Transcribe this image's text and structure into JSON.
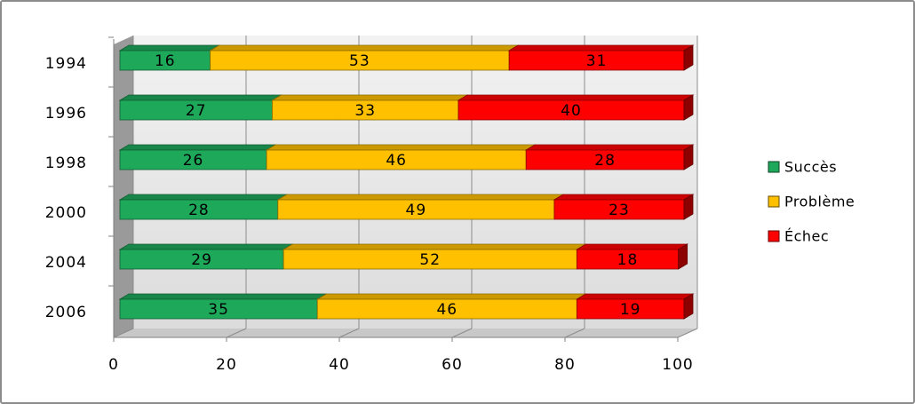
{
  "chart_data": {
    "type": "bar",
    "orientation": "horizontal",
    "stacked": true,
    "categories": [
      "1994",
      "1996",
      "1998",
      "2000",
      "2004",
      "2006"
    ],
    "series": [
      {
        "name": "Succès",
        "color": "#1ea85a",
        "values": [
          16,
          27,
          26,
          28,
          29,
          35
        ]
      },
      {
        "name": "Problème",
        "color": "#ffc000",
        "values": [
          53,
          33,
          46,
          49,
          52,
          46
        ]
      },
      {
        "name": "Échec",
        "color": "#ff0000",
        "values": [
          31,
          40,
          28,
          23,
          18,
          19
        ]
      }
    ],
    "xlim": [
      0,
      100
    ],
    "xticks": [
      0,
      20,
      40,
      60,
      80,
      100
    ],
    "grid": true
  }
}
